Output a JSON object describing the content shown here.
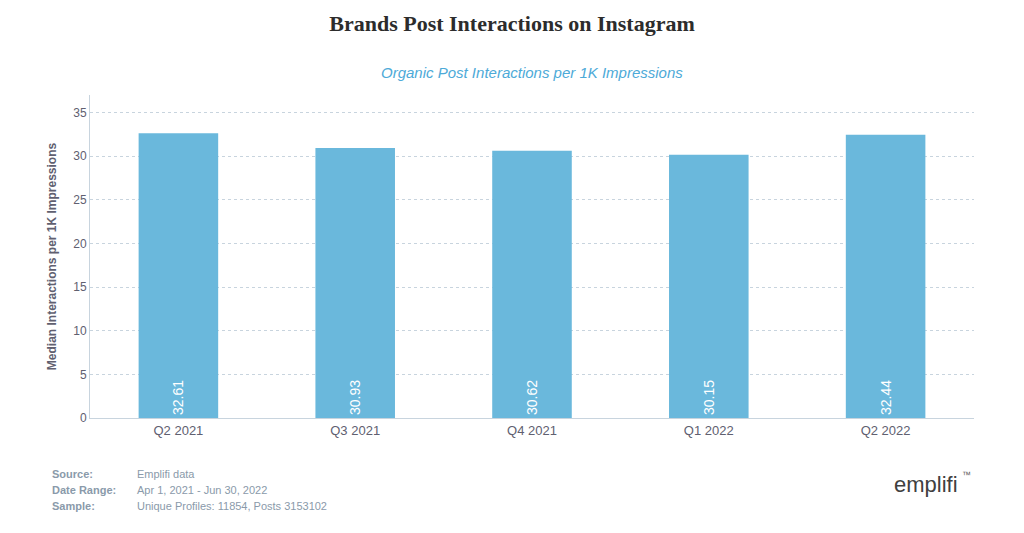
{
  "chart_data": {
    "type": "bar",
    "title": "Brands Post Interactions on Instagram",
    "subtitle": "Organic Post Interactions per 1K Impressions",
    "ylabel": "Median Interactions per 1K Impressions",
    "categories": [
      "Q2 2021",
      "Q3 2021",
      "Q4 2021",
      "Q1 2022",
      "Q2 2022"
    ],
    "values": [
      32.61,
      30.93,
      30.62,
      30.15,
      32.44
    ],
    "color": "#6ab8dc",
    "ylim": [
      0,
      37
    ],
    "yticks": [
      0,
      5,
      10,
      15,
      20,
      25,
      30,
      35
    ],
    "grid": true,
    "data_labels": true,
    "annotations": [
      "Source:",
      "Emplifi data",
      "Date Range:",
      "Apr 1, 2021 - Jun 30, 2022",
      "Sample:",
      "Unique Profiles: 11854, Posts 3153102",
      "emplifi",
      "™"
    ]
  }
}
